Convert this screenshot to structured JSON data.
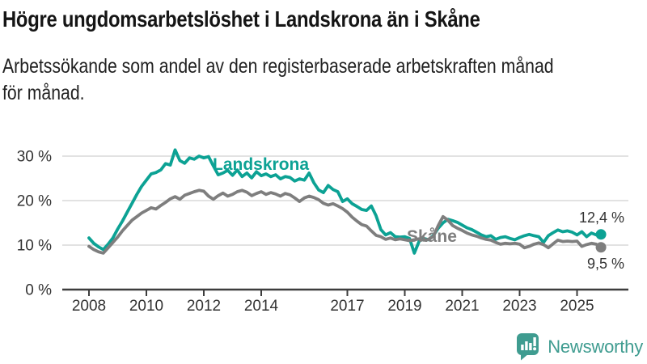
{
  "header": {
    "title": "Högre ungdomsarbetslöshet i Landskrona än i Skåne",
    "subtitle_line1": "Arbetssökande som andel av den registerbaserade arbetskraften månad",
    "subtitle_line2": "för månad."
  },
  "chart_data": {
    "type": "line",
    "title": "",
    "xlabel": "",
    "ylabel": "",
    "x_unit": "year (monthly series)",
    "y_unit": "percent of registered labour force",
    "x_start": 2008.0,
    "x_step_years": 0.1666667,
    "x_ticks": [
      2008,
      2010,
      2012,
      2014,
      2017,
      2019,
      2021,
      2023,
      2025
    ],
    "y_ticks": [
      {
        "value": 0,
        "label": "0 %"
      },
      {
        "value": 10,
        "label": "10 %"
      },
      {
        "value": 20,
        "label": "20 %"
      },
      {
        "value": 30,
        "label": "30 %"
      }
    ],
    "ylim": [
      0,
      33
    ],
    "grid": "horizontal",
    "legend_position": "inline-labels",
    "series": [
      {
        "name": "Landskrona",
        "label": "Landskrona",
        "end_label": "12,4 %",
        "color": "#0CA294",
        "values": [
          11.6,
          10.4,
          9.6,
          9.0,
          10.2,
          11.6,
          13.6,
          15.4,
          17.4,
          19.4,
          21.4,
          23.2,
          24.6,
          26.0,
          26.3,
          26.9,
          28.3,
          28.0,
          31.4,
          29.0,
          28.4,
          29.6,
          29.3,
          30.0,
          29.6,
          29.9,
          27.8,
          25.8,
          26.2,
          26.8,
          25.7,
          26.9,
          25.4,
          26.2,
          25.1,
          26.5,
          25.6,
          26.0,
          25.4,
          25.8,
          24.9,
          25.4,
          25.2,
          24.4,
          24.9,
          24.6,
          26.2,
          24.0,
          22.4,
          21.8,
          23.4,
          22.5,
          22.0,
          19.8,
          20.4,
          19.3,
          18.7,
          18.0,
          17.8,
          18.8,
          16.6,
          13.5,
          12.3,
          12.8,
          11.9,
          11.8,
          11.9,
          11.5,
          8.2,
          10.9,
          11.5,
          11.2,
          12.2,
          13.8,
          15.0,
          15.8,
          15.5,
          15.1,
          14.5,
          13.9,
          13.5,
          12.9,
          12.3,
          11.9,
          12.1,
          11.3,
          11.7,
          11.9,
          11.5,
          11.2,
          11.7,
          12.1,
          12.4,
          12.1,
          11.9,
          10.6,
          12.1,
          12.8,
          13.4,
          13.0,
          13.2,
          12.9,
          12.3,
          13.0,
          11.9,
          12.7,
          12.3,
          12.4
        ]
      },
      {
        "name": "Skåne",
        "label": "Skåne",
        "end_label": "9,5 %",
        "color": "#7E7E7E",
        "values": [
          9.7,
          9.0,
          8.5,
          8.2,
          9.4,
          10.6,
          11.8,
          13.2,
          14.4,
          15.6,
          16.4,
          17.2,
          17.8,
          18.4,
          18.1,
          18.9,
          19.6,
          20.4,
          20.9,
          20.3,
          21.2,
          21.6,
          22.0,
          22.3,
          22.1,
          21.0,
          20.3,
          21.1,
          21.7,
          21.0,
          21.4,
          22.0,
          22.3,
          21.9,
          21.1,
          21.6,
          22.0,
          21.4,
          21.8,
          21.5,
          21.0,
          21.6,
          21.3,
          20.6,
          19.8,
          20.6,
          21.0,
          20.7,
          20.2,
          19.4,
          19.0,
          19.3,
          18.8,
          18.2,
          17.4,
          16.3,
          15.4,
          14.6,
          14.3,
          13.2,
          12.2,
          11.9,
          11.3,
          11.6,
          11.2,
          11.4,
          11.2,
          11.0,
          11.2,
          11.4,
          11.1,
          11.3,
          12.0,
          14.4,
          16.4,
          15.6,
          14.4,
          13.8,
          13.3,
          12.7,
          12.3,
          12.0,
          11.6,
          11.3,
          11.1,
          10.6,
          10.2,
          10.4,
          10.3,
          10.4,
          10.2,
          9.4,
          9.7,
          10.2,
          10.5,
          10.1,
          9.4,
          10.3,
          11.1,
          10.8,
          10.9,
          10.8,
          10.9,
          9.7,
          10.1,
          10.4,
          10.2,
          9.5
        ]
      }
    ]
  },
  "footer": {
    "brand": "Newsworthy",
    "brand_color": "#3F9C90",
    "logo_icon": "newsworthy-bubble-chart-icon"
  },
  "colors": {
    "accent_teal": "#0CA294",
    "series_gray": "#7E7E7E",
    "grid": "#D9D9D9",
    "axis": "#3D3D3D",
    "text": "#333333",
    "title_text": "#151515"
  }
}
